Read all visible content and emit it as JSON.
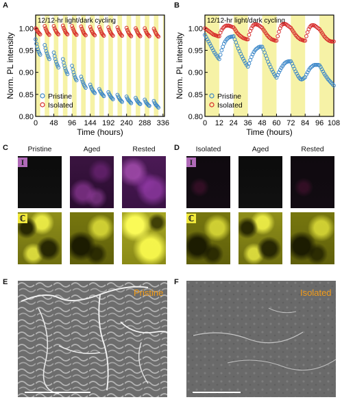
{
  "panels": {
    "A": "A",
    "B": "B",
    "C": "C",
    "D": "D",
    "E": "E",
    "F": "F"
  },
  "chart_data": [
    {
      "type": "scatter",
      "panel": "A",
      "annotation": "12/12-hr light/dark cycling",
      "xlabel": "Time (hours)",
      "ylabel": "Norm. PL intensity",
      "xlim": [
        0,
        340
      ],
      "ylim": [
        0.8,
        1.03
      ],
      "xticks": [
        0,
        48,
        96,
        144,
        192,
        240,
        288,
        336
      ],
      "yticks": [
        0.8,
        0.85,
        0.9,
        0.95,
        1.0
      ],
      "light_periods_hours": 12,
      "series": [
        {
          "name": "Pristine",
          "color": "#3a86c8",
          "x": [
            0,
            2,
            4,
            6,
            8,
            10,
            12,
            24,
            26,
            28,
            30,
            32,
            34,
            36,
            48,
            50,
            52,
            54,
            56,
            58,
            60,
            72,
            74,
            76,
            78,
            80,
            82,
            84,
            96,
            98,
            100,
            102,
            104,
            106,
            108,
            120,
            122,
            124,
            126,
            128,
            130,
            132,
            144,
            146,
            148,
            150,
            152,
            154,
            156,
            168,
            170,
            172,
            174,
            176,
            178,
            180,
            192,
            194,
            196,
            198,
            200,
            202,
            204,
            216,
            218,
            220,
            222,
            224,
            226,
            228,
            240,
            242,
            244,
            246,
            248,
            250,
            252,
            264,
            266,
            268,
            270,
            272,
            274,
            276,
            288,
            290,
            292,
            294,
            296,
            298,
            300,
            312,
            314,
            316,
            318,
            320,
            322,
            324
          ],
          "y": [
            0.975,
            0.965,
            0.958,
            0.952,
            0.947,
            0.943,
            0.94,
            0.962,
            0.955,
            0.948,
            0.943,
            0.938,
            0.934,
            0.93,
            0.945,
            0.937,
            0.93,
            0.924,
            0.919,
            0.915,
            0.911,
            0.93,
            0.922,
            0.915,
            0.909,
            0.904,
            0.9,
            0.896,
            0.915,
            0.907,
            0.9,
            0.894,
            0.889,
            0.885,
            0.882,
            0.89,
            0.884,
            0.879,
            0.875,
            0.871,
            0.868,
            0.865,
            0.872,
            0.867,
            0.863,
            0.86,
            0.857,
            0.855,
            0.853,
            0.862,
            0.858,
            0.855,
            0.852,
            0.85,
            0.848,
            0.846,
            0.855,
            0.851,
            0.848,
            0.845,
            0.843,
            0.841,
            0.839,
            0.849,
            0.845,
            0.842,
            0.839,
            0.837,
            0.835,
            0.833,
            0.845,
            0.841,
            0.838,
            0.836,
            0.834,
            0.832,
            0.83,
            0.842,
            0.838,
            0.835,
            0.833,
            0.831,
            0.829,
            0.828,
            0.838,
            0.834,
            0.831,
            0.829,
            0.827,
            0.825,
            0.824,
            0.835,
            0.831,
            0.828,
            0.826,
            0.824,
            0.822,
            0.82
          ]
        },
        {
          "name": "Isolated",
          "color": "#d62828",
          "x": [
            0,
            2,
            4,
            6,
            8,
            10,
            12,
            24,
            26,
            28,
            30,
            32,
            34,
            36,
            48,
            50,
            52,
            54,
            56,
            58,
            60,
            72,
            74,
            76,
            78,
            80,
            82,
            84,
            96,
            98,
            100,
            102,
            104,
            106,
            108,
            120,
            122,
            124,
            126,
            128,
            130,
            132,
            144,
            146,
            148,
            150,
            152,
            154,
            156,
            168,
            170,
            172,
            174,
            176,
            178,
            180,
            192,
            194,
            196,
            198,
            200,
            202,
            204,
            216,
            218,
            220,
            222,
            224,
            226,
            228,
            240,
            242,
            244,
            246,
            248,
            250,
            252,
            264,
            266,
            268,
            270,
            272,
            274,
            276,
            288,
            290,
            292,
            294,
            296,
            298,
            300,
            312,
            314,
            316,
            318,
            320,
            322,
            324
          ],
          "y": [
            1.0,
            0.998,
            0.995,
            0.992,
            0.99,
            0.988,
            0.986,
            1.005,
            1.0,
            0.996,
            0.992,
            0.989,
            0.987,
            0.985,
            1.005,
            1.0,
            0.996,
            0.993,
            0.99,
            0.988,
            0.986,
            1.006,
            1.001,
            0.997,
            0.993,
            0.99,
            0.988,
            0.986,
            1.005,
            1.0,
            0.996,
            0.992,
            0.989,
            0.987,
            0.985,
            1.004,
            0.999,
            0.995,
            0.991,
            0.988,
            0.986,
            0.984,
            1.003,
            0.998,
            0.994,
            0.991,
            0.988,
            0.986,
            0.984,
            1.003,
            0.998,
            0.994,
            0.99,
            0.987,
            0.985,
            0.983,
            1.002,
            0.997,
            0.993,
            0.99,
            0.987,
            0.985,
            0.983,
            1.002,
            0.997,
            0.993,
            0.99,
            0.987,
            0.985,
            0.983,
            1.001,
            0.996,
            0.992,
            0.989,
            0.986,
            0.984,
            0.982,
            1.0,
            0.996,
            0.992,
            0.989,
            0.986,
            0.984,
            0.982,
            1.0,
            0.995,
            0.991,
            0.988,
            0.986,
            0.984,
            0.982,
            0.999,
            0.995,
            0.991,
            0.988,
            0.985,
            0.983,
            0.981
          ]
        }
      ]
    },
    {
      "type": "scatter",
      "panel": "B",
      "annotation": "12/12-hr light/dark cycling",
      "xlabel": "Time (hours)",
      "ylabel": "Norm. PL intensity",
      "xlim": [
        0,
        108
      ],
      "ylim": [
        0.8,
        1.03
      ],
      "xticks": [
        0,
        12,
        24,
        36,
        48,
        60,
        72,
        84,
        96,
        108
      ],
      "yticks": [
        0.8,
        0.85,
        0.9,
        0.95,
        1.0
      ],
      "light_periods_hours": 12,
      "series": [
        {
          "name": "Pristine",
          "color": "#3a86c8",
          "x": [
            0,
            1,
            2,
            3,
            4,
            5,
            6,
            7,
            8,
            9,
            10,
            11,
            12,
            13,
            14,
            15,
            16,
            17,
            18,
            19,
            20,
            21,
            22,
            23,
            24,
            25,
            26,
            27,
            28,
            29,
            30,
            31,
            32,
            33,
            34,
            35,
            36,
            37,
            38,
            39,
            40,
            41,
            42,
            43,
            44,
            45,
            46,
            47,
            48,
            49,
            50,
            51,
            52,
            53,
            54,
            55,
            56,
            57,
            58,
            59,
            60,
            61,
            62,
            63,
            64,
            65,
            66,
            67,
            68,
            69,
            70,
            71,
            72,
            73,
            74,
            75,
            76,
            77,
            78,
            79,
            80,
            81,
            82,
            83,
            84,
            85,
            86,
            87,
            88,
            89,
            90,
            91,
            92,
            93,
            94,
            95,
            96,
            97,
            98,
            99,
            100,
            101,
            102,
            103,
            104,
            105,
            106,
            107,
            108
          ],
          "y": [
            0.985,
            0.98,
            0.975,
            0.97,
            0.965,
            0.96,
            0.955,
            0.95,
            0.945,
            0.941,
            0.937,
            0.933,
            0.93,
            0.94,
            0.95,
            0.958,
            0.965,
            0.97,
            0.974,
            0.977,
            0.979,
            0.98,
            0.981,
            0.981,
            0.982,
            0.975,
            0.968,
            0.961,
            0.954,
            0.948,
            0.942,
            0.936,
            0.931,
            0.926,
            0.921,
            0.917,
            0.913,
            0.92,
            0.928,
            0.935,
            0.941,
            0.946,
            0.95,
            0.953,
            0.955,
            0.957,
            0.958,
            0.958,
            0.958,
            0.952,
            0.945,
            0.938,
            0.931,
            0.924,
            0.918,
            0.912,
            0.906,
            0.901,
            0.896,
            0.892,
            0.888,
            0.894,
            0.9,
            0.905,
            0.91,
            0.914,
            0.918,
            0.921,
            0.923,
            0.924,
            0.925,
            0.925,
            0.925,
            0.92,
            0.914,
            0.908,
            0.902,
            0.897,
            0.892,
            0.888,
            0.885,
            0.884,
            0.885,
            0.887,
            0.889,
            0.895,
            0.9,
            0.905,
            0.909,
            0.912,
            0.914,
            0.916,
            0.917,
            0.917,
            0.917,
            0.917,
            0.916,
            0.912,
            0.907,
            0.902,
            0.897,
            0.893,
            0.889,
            0.885,
            0.882,
            0.879,
            0.876,
            0.873,
            0.87
          ]
        },
        {
          "name": "Isolated",
          "color": "#d62828",
          "x": [
            0,
            1,
            2,
            3,
            4,
            5,
            6,
            7,
            8,
            9,
            10,
            11,
            12,
            13,
            14,
            15,
            16,
            17,
            18,
            19,
            20,
            21,
            22,
            23,
            24,
            25,
            26,
            27,
            28,
            29,
            30,
            31,
            32,
            33,
            34,
            35,
            36,
            37,
            38,
            39,
            40,
            41,
            42,
            43,
            44,
            45,
            46,
            47,
            48,
            49,
            50,
            51,
            52,
            53,
            54,
            55,
            56,
            57,
            58,
            59,
            60,
            61,
            62,
            63,
            64,
            65,
            66,
            67,
            68,
            69,
            70,
            71,
            72,
            73,
            74,
            75,
            76,
            77,
            78,
            79,
            80,
            81,
            82,
            83,
            84,
            85,
            86,
            87,
            88,
            89,
            90,
            91,
            92,
            93,
            94,
            95,
            96,
            97,
            98,
            99,
            100,
            101,
            102,
            103,
            104,
            105,
            106,
            107,
            108
          ],
          "y": [
            1.0,
            0.998,
            0.996,
            0.994,
            0.992,
            0.99,
            0.988,
            0.986,
            0.985,
            0.984,
            0.983,
            0.982,
            0.982,
            0.99,
            0.996,
            1.0,
            1.003,
            1.005,
            1.006,
            1.006,
            1.006,
            1.005,
            1.004,
            1.003,
            1.002,
            0.998,
            0.994,
            0.99,
            0.987,
            0.984,
            0.982,
            0.98,
            0.978,
            0.977,
            0.976,
            0.975,
            0.975,
            0.985,
            0.994,
            1.0,
            1.005,
            1.008,
            1.009,
            1.009,
            1.008,
            1.007,
            1.005,
            1.003,
            1.001,
            0.997,
            0.993,
            0.989,
            0.985,
            0.982,
            0.979,
            0.977,
            0.975,
            0.974,
            0.973,
            0.972,
            0.972,
            0.982,
            0.992,
            1.0,
            1.006,
            1.009,
            1.01,
            1.01,
            1.009,
            1.007,
            1.005,
            1.003,
            1.001,
            0.997,
            0.993,
            0.989,
            0.985,
            0.982,
            0.979,
            0.977,
            0.975,
            0.974,
            0.973,
            0.972,
            0.972,
            0.982,
            0.991,
            0.998,
            1.003,
            1.006,
            1.007,
            1.007,
            1.006,
            1.004,
            1.002,
            1.0,
            0.998,
            0.994,
            0.99,
            0.986,
            0.982,
            0.979,
            0.976,
            0.974,
            0.972,
            0.971,
            0.97,
            0.97,
            0.97
          ]
        }
      ]
    }
  ],
  "panelC": {
    "labels": [
      "Pristine",
      "Aged",
      "Rested"
    ],
    "badge_top": "I",
    "badge_bottom": "ℂ"
  },
  "panelD": {
    "labels": [
      "Isolated",
      "Aged",
      "Rested"
    ],
    "badge_top": "I",
    "badge_bottom": "ℂ"
  },
  "panelE": {
    "label": "Pristine"
  },
  "panelF": {
    "label": "Isolated"
  },
  "colors": {
    "pristine": "#3a86c8",
    "isolated": "#d62828",
    "light_band": "#f6f2a6",
    "sem_label": "#f39c18",
    "badge_iodine_bg": "#b06ab8",
    "badge_cesium_bg": "#f2ea3c"
  }
}
